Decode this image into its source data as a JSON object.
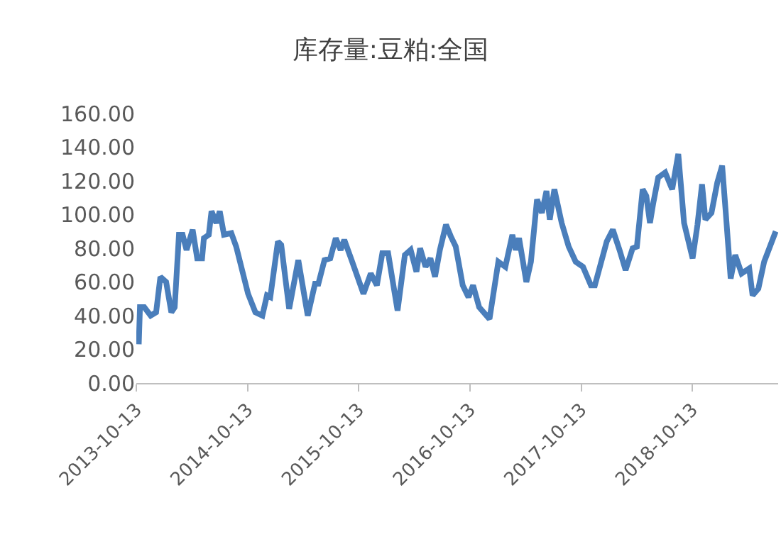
{
  "chart_data": {
    "type": "line",
    "title": "库存量:豆粕:全国",
    "x": [
      "2013-10-21",
      "2013-10-25",
      "2013-11-08",
      "2013-11-29",
      "2013-12-17",
      "2013-12-31",
      "2014-01-19",
      "2014-02-05",
      "2014-02-16",
      "2014-03-02",
      "2014-03-14",
      "2014-03-27",
      "2014-04-16",
      "2014-05-01",
      "2014-05-17",
      "2014-05-23",
      "2014-06-08",
      "2014-06-17",
      "2014-07-03",
      "2014-07-14",
      "2014-07-28",
      "2014-08-21",
      "2014-09-06",
      "2014-10-15",
      "2014-11-08",
      "2014-12-01",
      "2014-12-16",
      "2014-12-27",
      "2015-01-21",
      "2015-02-01",
      "2015-02-27",
      "2015-03-29",
      "2015-04-29",
      "2015-05-23",
      "2015-06-03",
      "2015-06-23",
      "2015-07-12",
      "2015-07-30",
      "2015-08-15",
      "2015-08-27",
      "2015-09-20",
      "2015-10-29",
      "2015-11-22",
      "2015-12-12",
      "2015-12-30",
      "2016-01-18",
      "2016-02-18",
      "2016-03-13",
      "2016-04-01",
      "2016-04-20",
      "2016-05-02",
      "2016-05-20",
      "2016-06-05",
      "2016-06-20",
      "2016-07-06",
      "2016-07-26",
      "2016-08-11",
      "2016-08-27",
      "2016-09-19",
      "2016-10-08",
      "2016-10-23",
      "2016-11-12",
      "2016-12-16",
      "2017-01-14",
      "2017-02-06",
      "2017-03-01",
      "2017-03-12",
      "2017-03-23",
      "2017-04-16",
      "2017-05-01",
      "2017-05-21",
      "2017-06-06",
      "2017-06-21",
      "2017-07-02",
      "2017-07-17",
      "2017-08-10",
      "2017-09-02",
      "2017-09-25",
      "2017-10-19",
      "2017-11-14",
      "2017-11-27",
      "2017-12-15",
      "2018-01-05",
      "2018-01-25",
      "2018-02-16",
      "2018-03-08",
      "2018-03-31",
      "2018-04-14",
      "2018-05-03",
      "2018-05-15",
      "2018-05-27",
      "2018-06-07",
      "2018-06-23",
      "2018-07-16",
      "2018-08-08",
      "2018-08-28",
      "2018-09-16",
      "2018-10-14",
      "2018-10-30",
      "2018-11-14",
      "2018-11-25",
      "2018-12-15",
      "2019-01-03",
      "2019-01-19",
      "2019-01-31",
      "2019-02-16",
      "2019-03-03",
      "2019-03-24",
      "2019-04-18",
      "2019-04-29",
      "2019-05-18",
      "2019-06-06",
      "2019-07-14"
    ],
    "series": [
      {
        "color": "#4a7ebb",
        "values": [
          23,
          45,
          45,
          40,
          42,
          63,
          60,
          42,
          45,
          88,
          88,
          79,
          91,
          74,
          74,
          86,
          88,
          102,
          95,
          102,
          88,
          89,
          81,
          53,
          42,
          40,
          52,
          51,
          84,
          82,
          44,
          73,
          40,
          59,
          59,
          73,
          74,
          86,
          79,
          85,
          73,
          53,
          65,
          58,
          77,
          77,
          43,
          76,
          79,
          66,
          80,
          69,
          74,
          63,
          79,
          94,
          87,
          81,
          58,
          51,
          58,
          45,
          38,
          72,
          69,
          88,
          79,
          86,
          60,
          72,
          109,
          101,
          114,
          97,
          115,
          95,
          81,
          72,
          69,
          58,
          58,
          70,
          84,
          91,
          79,
          67,
          80,
          81,
          115,
          111,
          95,
          107,
          122,
          125,
          115,
          136,
          95,
          74,
          94,
          118,
          97,
          101,
          119,
          129,
          101,
          62,
          76,
          65,
          68,
          52,
          56,
          72,
          90
        ]
      }
    ],
    "xlim": [
      "2013-10-13",
      "2019-07-22"
    ],
    "xticks": [
      {
        "value": "2013-10-13",
        "label": "2013-10-13"
      },
      {
        "value": "2014-10-13",
        "label": "2014-10-13"
      },
      {
        "value": "2015-10-13",
        "label": "2015-10-13"
      },
      {
        "value": "2016-10-13",
        "label": "2016-10-13"
      },
      {
        "value": "2017-10-13",
        "label": "2017-10-13"
      },
      {
        "value": "2018-10-13",
        "label": "2018-10-13"
      }
    ],
    "ylim": [
      0,
      160
    ],
    "yticks": [
      {
        "value": 0,
        "label": "0.00"
      },
      {
        "value": 20,
        "label": "20.00"
      },
      {
        "value": 40,
        "label": "40.00"
      },
      {
        "value": 60,
        "label": "60.00"
      },
      {
        "value": 80,
        "label": "80.00"
      },
      {
        "value": 100,
        "label": "100.00"
      },
      {
        "value": 120,
        "label": "120.00"
      },
      {
        "value": 140,
        "label": "140.00"
      },
      {
        "value": 160,
        "label": "160.00"
      }
    ],
    "legend": false,
    "marker": "none",
    "line_style": "solid"
  }
}
